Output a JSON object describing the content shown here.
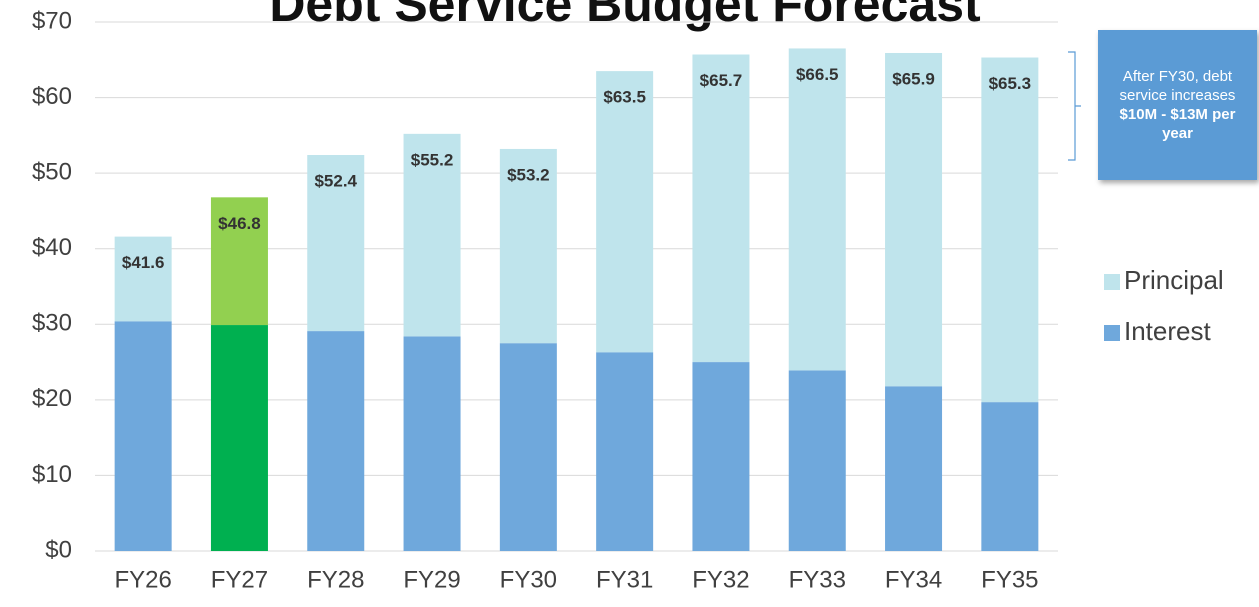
{
  "chart_data": {
    "type": "stacked_bar",
    "title": "Debt Service Budget Forecast",
    "categories": [
      "FY26",
      "FY27",
      "FY28",
      "FY29",
      "FY30",
      "FY31",
      "FY32",
      "FY33",
      "FY34",
      "FY35"
    ],
    "series": [
      {
        "name": "Interest",
        "color": "#6fa8dc",
        "highlight_color": "#00b050",
        "values": [
          30.4,
          29.9,
          29.1,
          28.4,
          27.5,
          26.3,
          25.0,
          23.9,
          21.8,
          19.7
        ]
      },
      {
        "name": "Principal",
        "color": "#bfe4ec",
        "highlight_color": "#92d050",
        "values": [
          11.2,
          16.9,
          23.3,
          26.8,
          25.7,
          37.2,
          40.7,
          42.6,
          44.1,
          45.6
        ]
      }
    ],
    "highlight": "FY27",
    "totals": [
      41.6,
      46.8,
      52.4,
      55.2,
      53.2,
      63.5,
      65.7,
      66.5,
      65.9,
      65.3
    ],
    "total_labels": [
      "$41.6",
      "$46.8",
      "$52.4",
      "$55.2",
      "$53.2",
      "$63.5",
      "$65.7",
      "$66.5",
      "$65.9",
      "$65.3"
    ],
    "ylim": [
      0,
      70
    ],
    "yticks": [
      {
        "value": 0,
        "label": "$0"
      },
      {
        "value": 10,
        "label": "$10"
      },
      {
        "value": 20,
        "label": "$20"
      },
      {
        "value": 30,
        "label": "$30"
      },
      {
        "value": 40,
        "label": "$40"
      },
      {
        "value": 50,
        "label": "$50"
      },
      {
        "value": 60,
        "label": "$60"
      },
      {
        "value": 70,
        "label": "$70"
      }
    ],
    "grid": true,
    "legend": "right",
    "annotation": {
      "text": "After FY30, debt service increases",
      "bold": "$10M - $13M per year"
    }
  }
}
